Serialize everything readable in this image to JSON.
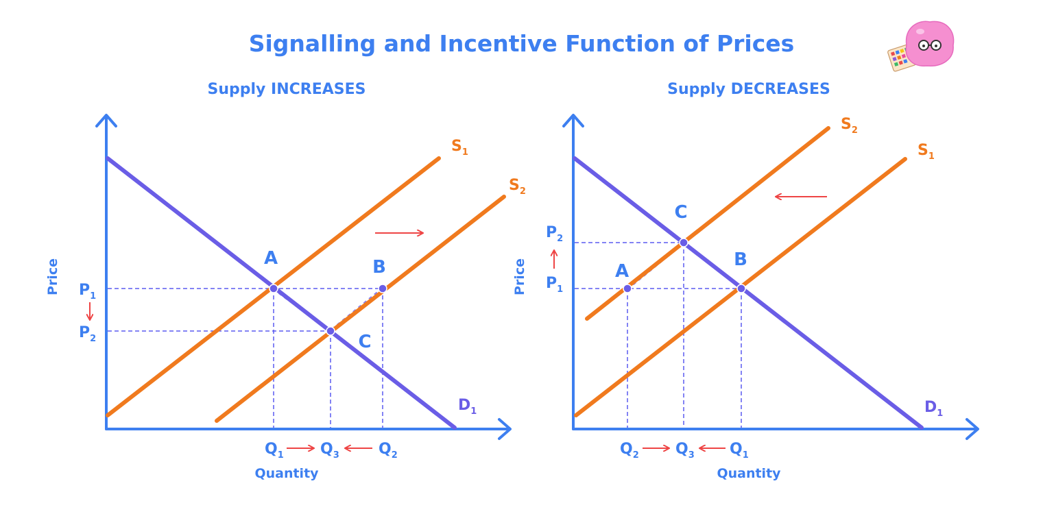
{
  "title": "Signalling and Incentive Function of Prices",
  "colors": {
    "title": "#3d7ff0",
    "axes": "#3d7ff0",
    "supply": "#f07a1e",
    "demand": "#6a5de6",
    "arrow": "#ee4444",
    "guide": "#5a5af0"
  },
  "panels": [
    {
      "subtitle": "Supply INCREASES",
      "y_axis_label": "Price",
      "x_axis_label": "Quantity",
      "supply_labels": [
        {
          "main": "S",
          "sub": "1"
        },
        {
          "main": "S",
          "sub": "2"
        }
      ],
      "demand_label": {
        "main": "D",
        "sub": "1"
      },
      "points": [
        "A",
        "B",
        "C"
      ],
      "price_ticks": [
        {
          "main": "P",
          "sub": "1"
        },
        {
          "main": "P",
          "sub": "2"
        }
      ],
      "price_arrow": "down",
      "quantity_ticks": [
        {
          "main": "Q",
          "sub": "1"
        },
        {
          "main": "Q",
          "sub": "3"
        },
        {
          "main": "Q",
          "sub": "2"
        }
      ],
      "shift_arrow": "right"
    },
    {
      "subtitle": "Supply DECREASES",
      "y_axis_label": "Price",
      "x_axis_label": "Quantity",
      "supply_labels": [
        {
          "main": "S",
          "sub": "2"
        },
        {
          "main": "S",
          "sub": "1"
        }
      ],
      "demand_label": {
        "main": "D",
        "sub": "1"
      },
      "points": [
        "C",
        "A",
        "B"
      ],
      "price_ticks": [
        {
          "main": "P",
          "sub": "2"
        },
        {
          "main": "P",
          "sub": "1"
        }
      ],
      "price_arrow": "up",
      "quantity_ticks": [
        {
          "main": "Q",
          "sub": "2"
        },
        {
          "main": "Q",
          "sub": "3"
        },
        {
          "main": "Q",
          "sub": "1"
        }
      ],
      "shift_arrow": "left"
    }
  ],
  "mascot_icon": "pink-blob-with-glasses-icon"
}
